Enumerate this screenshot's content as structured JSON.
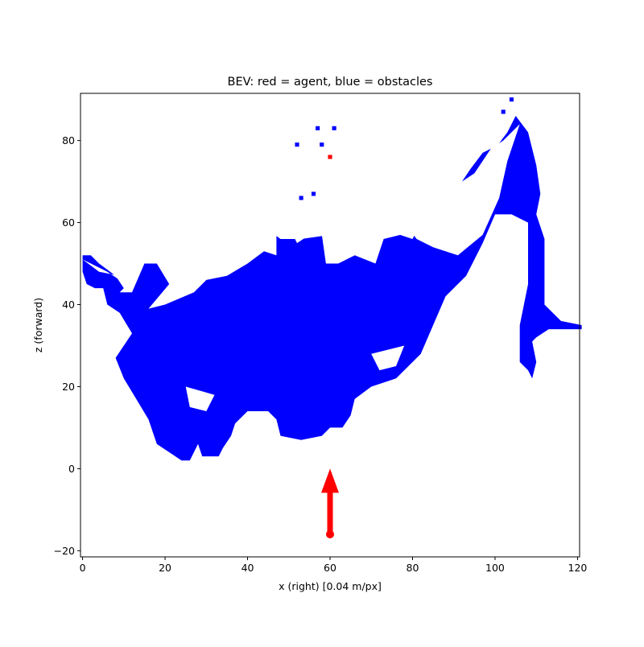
{
  "chart_data": {
    "type": "heatmap",
    "title": "BEV: red = agent, blue = obstacles",
    "xlabel": "x (right)  [0.04 m/px]",
    "ylabel": "z (forward)",
    "xlim": [
      -0.5,
      120.5
    ],
    "ylim": [
      -21.5,
      91.5
    ],
    "xticks": [
      0,
      20,
      40,
      60,
      80,
      100,
      120
    ],
    "yticks": [
      -20,
      0,
      20,
      40,
      60,
      80
    ],
    "grid": false,
    "colors": {
      "obstacle": "#0000ff",
      "agent": "#ff0000",
      "background": "#ffffff"
    },
    "obstacle_region": [
      [
        0,
        55
      ],
      [
        0,
        52
      ],
      [
        2,
        52
      ],
      [
        4,
        50
      ],
      [
        8,
        47
      ],
      [
        10,
        44
      ],
      [
        9,
        43
      ],
      [
        12,
        43
      ],
      [
        15,
        50
      ],
      [
        18,
        50
      ],
      [
        21,
        45
      ],
      [
        16,
        39
      ],
      [
        20,
        40
      ],
      [
        27,
        43
      ],
      [
        30,
        46
      ],
      [
        35,
        47
      ],
      [
        40,
        50
      ],
      [
        44,
        53
      ],
      [
        47,
        52
      ],
      [
        47,
        58
      ],
      [
        50,
        59
      ],
      [
        52,
        55
      ],
      [
        55,
        57
      ],
      [
        58,
        57
      ],
      [
        59,
        50
      ],
      [
        62,
        50
      ],
      [
        66,
        52
      ],
      [
        71,
        50
      ],
      [
        73,
        56
      ],
      [
        77,
        57
      ],
      [
        80,
        56
      ],
      [
        82,
        60
      ],
      [
        85,
        63
      ],
      [
        88,
        66
      ],
      [
        90,
        67
      ],
      [
        94,
        73
      ],
      [
        97,
        77
      ],
      [
        99,
        78
      ],
      [
        100,
        78
      ],
      [
        103,
        82
      ],
      [
        105,
        86
      ],
      [
        108,
        82
      ],
      [
        110,
        74
      ],
      [
        111,
        67
      ],
      [
        110,
        62
      ],
      [
        112,
        56
      ],
      [
        112,
        40
      ],
      [
        116,
        36
      ],
      [
        121,
        35
      ],
      [
        121,
        34
      ],
      [
        113,
        34
      ],
      [
        110,
        32
      ],
      [
        109,
        31
      ],
      [
        110,
        26
      ],
      [
        109,
        22
      ],
      [
        108,
        24
      ],
      [
        106,
        26
      ],
      [
        106,
        35
      ],
      [
        108,
        45
      ],
      [
        108,
        60
      ],
      [
        104,
        62
      ],
      [
        100,
        62
      ],
      [
        97,
        55
      ],
      [
        93,
        47
      ],
      [
        88,
        42
      ],
      [
        85,
        35
      ],
      [
        82,
        28
      ],
      [
        76,
        22
      ],
      [
        70,
        20
      ],
      [
        66,
        17
      ],
      [
        65,
        13
      ],
      [
        63,
        10
      ],
      [
        60,
        10
      ],
      [
        58,
        8
      ],
      [
        53,
        7
      ],
      [
        48,
        8
      ],
      [
        47,
        12
      ],
      [
        45,
        14
      ],
      [
        40,
        14
      ],
      [
        37,
        11
      ],
      [
        36,
        8
      ],
      [
        34,
        5
      ],
      [
        33,
        3
      ],
      [
        29,
        3
      ],
      [
        28,
        6
      ],
      [
        26,
        2
      ],
      [
        24,
        2
      ],
      [
        21,
        4
      ],
      [
        18,
        6
      ],
      [
        16,
        12
      ],
      [
        13,
        17
      ],
      [
        10,
        22
      ],
      [
        8,
        27
      ],
      [
        10,
        30
      ],
      [
        12,
        33
      ],
      [
        9,
        38
      ],
      [
        6,
        40
      ],
      [
        5,
        44
      ],
      [
        3,
        44
      ],
      [
        1,
        45
      ],
      [
        0,
        48
      ]
    ],
    "obstacle_gaps": [
      [
        [
          21,
          63
        ],
        [
          26,
          61
        ],
        [
          24,
          55
        ],
        [
          30,
          52
        ],
        [
          28,
          48
        ],
        [
          22,
          50
        ],
        [
          18,
          58
        ],
        [
          16,
          62
        ]
      ],
      [
        [
          44,
          63
        ],
        [
          52,
          67
        ],
        [
          58,
          65
        ],
        [
          60,
          57
        ],
        [
          53,
          56
        ],
        [
          48,
          56
        ],
        [
          44,
          59
        ]
      ],
      [
        [
          78,
          60
        ],
        [
          86,
          66
        ],
        [
          95,
          72
        ],
        [
          99,
          78
        ],
        [
          102,
          80
        ],
        [
          106,
          84
        ],
        [
          103,
          75
        ],
        [
          101,
          66
        ],
        [
          97,
          57
        ],
        [
          91,
          52
        ],
        [
          85,
          54
        ],
        [
          81,
          56
        ]
      ],
      [
        [
          0,
          51
        ],
        [
          6,
          48
        ],
        [
          12,
          44
        ],
        [
          14,
          49
        ],
        [
          9,
          47
        ],
        [
          4,
          48
        ]
      ],
      [
        [
          25,
          20
        ],
        [
          32,
          18
        ],
        [
          30,
          14
        ],
        [
          26,
          15
        ]
      ],
      [
        [
          70,
          28
        ],
        [
          78,
          30
        ],
        [
          76,
          25
        ],
        [
          72,
          24
        ]
      ]
    ],
    "agent_pixels": [
      [
        60,
        76
      ]
    ],
    "stray_pixels": [
      [
        52,
        79
      ],
      [
        58,
        79
      ],
      [
        57,
        83
      ],
      [
        61,
        83
      ],
      [
        56,
        67
      ],
      [
        53,
        66
      ],
      [
        104,
        90
      ],
      [
        102,
        87
      ]
    ],
    "agent_arrow": {
      "tail": [
        60,
        -16
      ],
      "tip": [
        60,
        0
      ]
    }
  }
}
